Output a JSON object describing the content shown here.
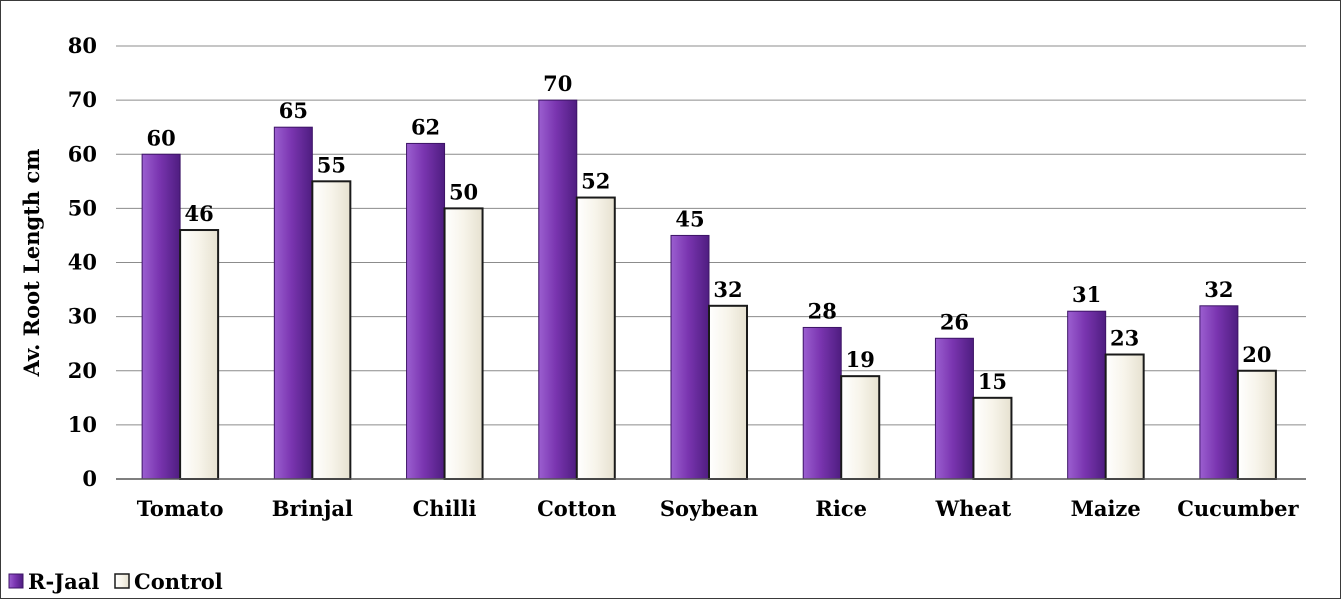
{
  "chart_data": {
    "type": "bar",
    "title": "",
    "xlabel": "",
    "ylabel": "Av. Root Length cm",
    "ylim": [
      0,
      80
    ],
    "yticks": [
      0,
      10,
      20,
      30,
      40,
      50,
      60,
      70,
      80
    ],
    "grid": true,
    "legend_position": "bottom-left",
    "categories": [
      "Tomato",
      "Brinjal",
      "Chilli",
      "Cotton",
      "Soybean",
      "Rice",
      "Wheat",
      "Maize",
      "Cucumber"
    ],
    "series": [
      {
        "name": "R-Jaal",
        "values": [
          60,
          65,
          62,
          70,
          45,
          28,
          26,
          31,
          32
        ],
        "color": "#7030a0"
      },
      {
        "name": "Control",
        "values": [
          46,
          55,
          50,
          52,
          32,
          19,
          15,
          23,
          20
        ],
        "color": "#f7f4ea"
      }
    ]
  }
}
